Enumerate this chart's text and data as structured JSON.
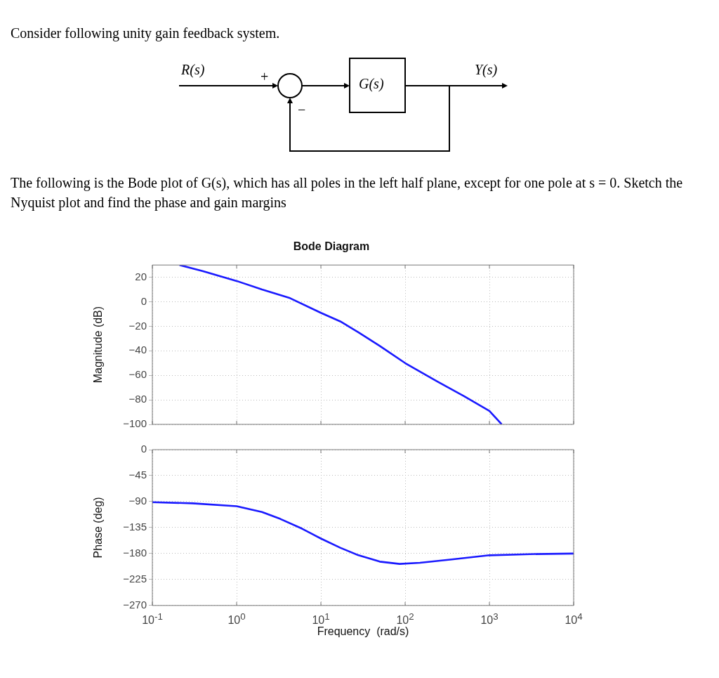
{
  "chart_data": [
    {
      "type": "other",
      "title": "Consider following unity gain feedback system.",
      "annotations": [
        "R(s)",
        "+",
        "−",
        "G(s)",
        "Y(s)",
        "The following is the Bode plot of G(s), which has all poles in the left half plane, except for one pole at s = 0. Sketch the Nyquist plot and find the phase and gain margins"
      ]
    },
    {
      "type": "line",
      "title": "Bode Diagram",
      "ylabel": "Magnitude (dB)",
      "log": "x",
      "xlim": [
        0.1,
        10000
      ],
      "ylim": [
        -100,
        30
      ],
      "xticks": [
        {
          "value": 0.1,
          "label": null
        },
        {
          "value": 1,
          "label": null
        },
        {
          "value": 10,
          "label": null
        },
        {
          "value": 100,
          "label": null
        },
        {
          "value": 1000,
          "label": null
        },
        {
          "value": 10000,
          "label": null
        }
      ],
      "yticks": [
        -100,
        -80,
        -60,
        -40,
        -20,
        0,
        20
      ],
      "grid": true,
      "tick_labels": "y",
      "series": [
        {
          "color": "#1a1aff",
          "x": [
            0.21,
            0.4,
            1,
            2,
            4.3,
            10,
            17,
            28,
            50,
            100,
            240,
            500,
            1000,
            1400
          ],
          "values": [
            30,
            25,
            17,
            10,
            3,
            -9,
            -16,
            -25,
            -36,
            -50,
            -65,
            -77,
            -89,
            -100
          ]
        }
      ]
    },
    {
      "type": "line",
      "xlabel": "Frequency  (rad/s)",
      "ylabel": "Phase (deg)",
      "log": "x",
      "xlim": [
        0.1,
        10000
      ],
      "ylim": [
        -270,
        0
      ],
      "xticks": [
        {
          "value": 0.1,
          "label": "10$^{-1}$"
        },
        {
          "value": 1,
          "label": "10$^{0}$"
        },
        {
          "value": 10,
          "label": "10$^{1}$"
        },
        {
          "value": 100,
          "label": "10$^{2}$"
        },
        {
          "value": 1000,
          "label": "10$^{3}$"
        },
        {
          "value": 10000,
          "label": "10$^{4}$"
        }
      ],
      "yticks": [
        -270,
        -225,
        -180,
        -135,
        -90,
        -45,
        0
      ],
      "grid": true,
      "series": [
        {
          "color": "#1a1aff",
          "x": [
            0.1,
            0.3,
            1,
            2,
            3.3,
            6,
            10,
            17,
            28,
            50,
            86,
            150,
            373,
            1000,
            3000,
            10000
          ],
          "values": [
            -91,
            -93,
            -98,
            -108,
            -120,
            -137,
            -154,
            -170,
            -183,
            -194,
            -198,
            -196,
            -190,
            -183,
            -181,
            -180
          ]
        }
      ]
    }
  ]
}
